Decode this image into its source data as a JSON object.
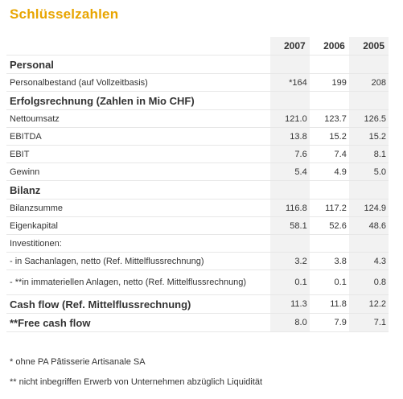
{
  "title": "Schlüsselzahlen",
  "years": [
    "2007",
    "2006",
    "2005"
  ],
  "rows": [
    {
      "label": "Personal",
      "type": "section",
      "values": [
        "",
        "",
        ""
      ]
    },
    {
      "label": "Personalbestand (auf Vollzeitbasis)",
      "type": "row",
      "values": [
        "*164",
        "199",
        "208"
      ]
    },
    {
      "label": "Erfolgsrechnung (Zahlen in Mio CHF)",
      "type": "section",
      "values": [
        "",
        "",
        ""
      ]
    },
    {
      "label": "Nettoumsatz",
      "type": "row",
      "values": [
        "121.0",
        "123.7",
        "126.5"
      ]
    },
    {
      "label": "EBITDA",
      "type": "row",
      "values": [
        "13.8",
        "15.2",
        "15.2"
      ]
    },
    {
      "label": "EBIT",
      "type": "row",
      "values": [
        "7.6",
        "7.4",
        "8.1"
      ]
    },
    {
      "label": "Gewinn",
      "type": "row",
      "values": [
        "5.4",
        "4.9",
        "5.0"
      ]
    },
    {
      "label": "Bilanz",
      "type": "section",
      "values": [
        "",
        "",
        ""
      ]
    },
    {
      "label": "Bilanzsumme",
      "type": "row",
      "values": [
        "116.8",
        "117.2",
        "124.9"
      ]
    },
    {
      "label": "Eigenkapital",
      "type": "row",
      "values": [
        "58.1",
        "52.6",
        "48.6"
      ]
    },
    {
      "label": "Investitionen:",
      "type": "row",
      "values": [
        "",
        "",
        ""
      ]
    },
    {
      "label": " - in Sachanlagen, netto (Ref. Mittelflussrechnung)",
      "type": "row",
      "values": [
        "3.2",
        "3.8",
        "4.3"
      ]
    },
    {
      "label": " - **in immateriellen Anlagen, netto (Ref. Mittelflussrechnung)",
      "type": "tall",
      "values": [
        "0.1",
        "0.1",
        "0.8"
      ]
    },
    {
      "label": "Cash flow (Ref. Mittelflussrechnung)",
      "type": "section",
      "values": [
        "11.3",
        "11.8",
        "12.2"
      ]
    },
    {
      "label": "**Free cash flow",
      "type": "section",
      "values": [
        "8.0",
        "7.9",
        "7.1"
      ]
    }
  ],
  "notes": [
    "* ohne PA Pâtisserie Artisanale SA",
    "** nicht inbegriffen Erwerb von Unternehmen abzüglich Liquidität"
  ]
}
